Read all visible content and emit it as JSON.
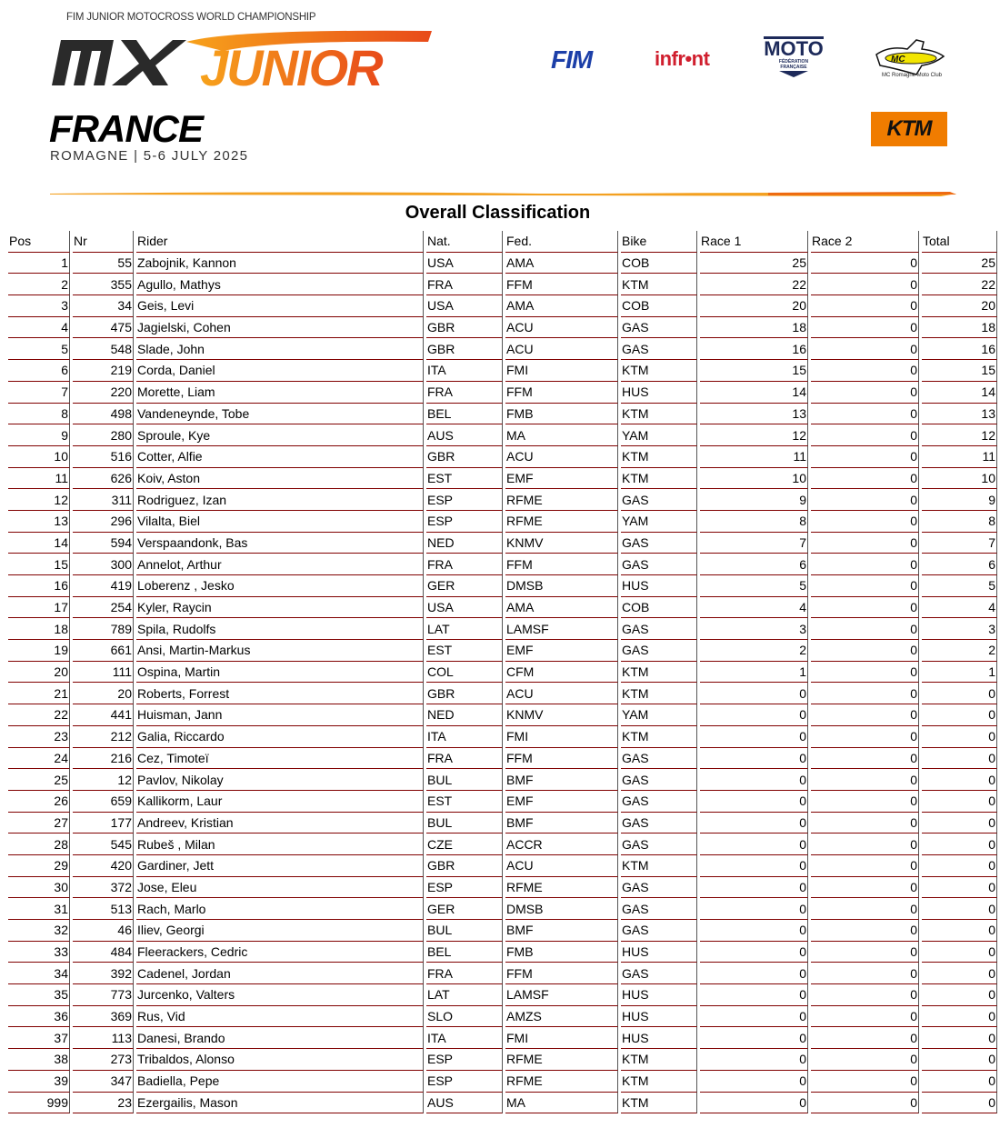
{
  "header": {
    "championship": "FIM JUNIOR MOTOCROSS WORLD CHAMPIONSHIP",
    "logo_text": "MX JUNIOR",
    "country": "FRANCE",
    "venue": "ROMAGNE | 5-6 JULY 2025",
    "sponsors": [
      "FIM",
      "infront",
      "MOTO FÉDÉRATION FRANÇAISE",
      "MC Romagne Moto Club",
      "KTM"
    ],
    "colors": {
      "orange": "#f07c00",
      "accent_red": "#e84a1a",
      "border": "#800000"
    }
  },
  "title": "Overall Classification",
  "columns": [
    "Pos",
    "Nr",
    "Rider",
    "Nat.",
    "Fed.",
    "Bike",
    "Race 1",
    "Race 2",
    "Total"
  ],
  "rows": [
    [
      "1",
      "55",
      "Zabojnik, Kannon",
      "USA",
      "AMA",
      "COB",
      "25",
      "0",
      "25"
    ],
    [
      "2",
      "355",
      "Agullo, Mathys",
      "FRA",
      "FFM",
      "KTM",
      "22",
      "0",
      "22"
    ],
    [
      "3",
      "34",
      "Geis, Levi",
      "USA",
      "AMA",
      "COB",
      "20",
      "0",
      "20"
    ],
    [
      "4",
      "475",
      "Jagielski, Cohen",
      "GBR",
      "ACU",
      "GAS",
      "18",
      "0",
      "18"
    ],
    [
      "5",
      "548",
      "Slade, John",
      "GBR",
      "ACU",
      "GAS",
      "16",
      "0",
      "16"
    ],
    [
      "6",
      "219",
      "Corda, Daniel",
      "ITA",
      "FMI",
      "KTM",
      "15",
      "0",
      "15"
    ],
    [
      "7",
      "220",
      "Morette, Liam",
      "FRA",
      "FFM",
      "HUS",
      "14",
      "0",
      "14"
    ],
    [
      "8",
      "498",
      "Vandeneynde, Tobe",
      "BEL",
      "FMB",
      "KTM",
      "13",
      "0",
      "13"
    ],
    [
      "9",
      "280",
      "Sproule, Kye",
      "AUS",
      "MA",
      "YAM",
      "12",
      "0",
      "12"
    ],
    [
      "10",
      "516",
      "Cotter, Alfie",
      "GBR",
      "ACU",
      "KTM",
      "11",
      "0",
      "11"
    ],
    [
      "11",
      "626",
      "Koiv, Aston",
      "EST",
      "EMF",
      "KTM",
      "10",
      "0",
      "10"
    ],
    [
      "12",
      "311",
      "Rodriguez, Izan",
      "ESP",
      "RFME",
      "GAS",
      "9",
      "0",
      "9"
    ],
    [
      "13",
      "296",
      "Vilalta, Biel",
      "ESP",
      "RFME",
      "YAM",
      "8",
      "0",
      "8"
    ],
    [
      "14",
      "594",
      "Verspaandonk, Bas",
      "NED",
      "KNMV",
      "GAS",
      "7",
      "0",
      "7"
    ],
    [
      "15",
      "300",
      "Annelot, Arthur",
      "FRA",
      "FFM",
      "GAS",
      "6",
      "0",
      "6"
    ],
    [
      "16",
      "419",
      "Loberenz , Jesko",
      "GER",
      "DMSB",
      "HUS",
      "5",
      "0",
      "5"
    ],
    [
      "17",
      "254",
      "Kyler, Raycin",
      "USA",
      "AMA",
      "COB",
      "4",
      "0",
      "4"
    ],
    [
      "18",
      "789",
      "Spila, Rudolfs",
      "LAT",
      "LAMSF",
      "GAS",
      "3",
      "0",
      "3"
    ],
    [
      "19",
      "661",
      "Ansi, Martin-Markus",
      "EST",
      "EMF",
      "GAS",
      "2",
      "0",
      "2"
    ],
    [
      "20",
      "111",
      "Ospina, Martin",
      "COL",
      "CFM",
      "KTM",
      "1",
      "0",
      "1"
    ],
    [
      "21",
      "20",
      "Roberts, Forrest",
      "GBR",
      "ACU",
      "KTM",
      "0",
      "0",
      "0"
    ],
    [
      "22",
      "441",
      "Huisman, Jann",
      "NED",
      "KNMV",
      "YAM",
      "0",
      "0",
      "0"
    ],
    [
      "23",
      "212",
      "Galia, Riccardo",
      "ITA",
      "FMI",
      "KTM",
      "0",
      "0",
      "0"
    ],
    [
      "24",
      "216",
      "Cez, Timoteï",
      "FRA",
      "FFM",
      "GAS",
      "0",
      "0",
      "0"
    ],
    [
      "25",
      "12",
      "Pavlov, Nikolay",
      "BUL",
      "BMF",
      "GAS",
      "0",
      "0",
      "0"
    ],
    [
      "26",
      "659",
      "Kallikorm, Laur",
      "EST",
      "EMF",
      "GAS",
      "0",
      "0",
      "0"
    ],
    [
      "27",
      "177",
      "Andreev, Kristian",
      "BUL",
      "BMF",
      "GAS",
      "0",
      "0",
      "0"
    ],
    [
      "28",
      "545",
      "Rubeš , Milan",
      "CZE",
      "ACCR",
      "GAS",
      "0",
      "0",
      "0"
    ],
    [
      "29",
      "420",
      "Gardiner, Jett",
      "GBR",
      "ACU",
      "KTM",
      "0",
      "0",
      "0"
    ],
    [
      "30",
      "372",
      "Jose, Eleu",
      "ESP",
      "RFME",
      "GAS",
      "0",
      "0",
      "0"
    ],
    [
      "31",
      "513",
      "Rach, Marlo",
      "GER",
      "DMSB",
      "GAS",
      "0",
      "0",
      "0"
    ],
    [
      "32",
      "46",
      "Iliev, Georgi",
      "BUL",
      "BMF",
      "GAS",
      "0",
      "0",
      "0"
    ],
    [
      "33",
      "484",
      "Fleerackers, Cedric",
      "BEL",
      "FMB",
      "HUS",
      "0",
      "0",
      "0"
    ],
    [
      "34",
      "392",
      "Cadenel, Jordan",
      "FRA",
      "FFM",
      "GAS",
      "0",
      "0",
      "0"
    ],
    [
      "35",
      "773",
      "Jurcenko, Valters",
      "LAT",
      "LAMSF",
      "HUS",
      "0",
      "0",
      "0"
    ],
    [
      "36",
      "369",
      "Rus, Vid",
      "SLO",
      "AMZS",
      "HUS",
      "0",
      "0",
      "0"
    ],
    [
      "37",
      "113",
      "Danesi, Brando",
      "ITA",
      "FMI",
      "HUS",
      "0",
      "0",
      "0"
    ],
    [
      "38",
      "273",
      "Tribaldos, Alonso",
      "ESP",
      "RFME",
      "KTM",
      "0",
      "0",
      "0"
    ],
    [
      "39",
      "347",
      "Badiella, Pepe",
      "ESP",
      "RFME",
      "KTM",
      "0",
      "0",
      "0"
    ],
    [
      "999",
      "23",
      "Ezergailis, Mason",
      "AUS",
      "MA",
      "KTM",
      "0",
      "0",
      "0"
    ]
  ]
}
